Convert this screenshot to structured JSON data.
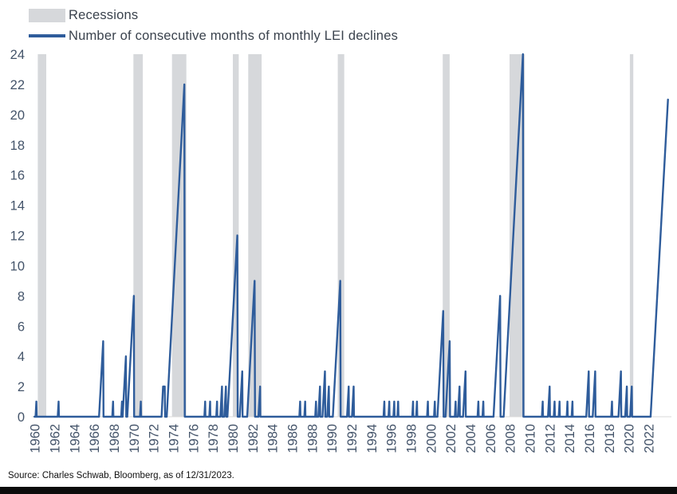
{
  "legend": [
    {
      "label": "Recessions",
      "swatch": "recession"
    },
    {
      "label": "Number of consecutive months of monthly LEI declines",
      "swatch": "line"
    }
  ],
  "source": "Source: Charles Schwab, Bloomberg, as of 12/31/2023.",
  "colors": {
    "line": "#2E5C9B",
    "recession": "#D6D8DB",
    "tick": "#44546A",
    "legend_text": "#3A424D",
    "baseline": "#D9D9D9"
  },
  "chart_data": {
    "type": "line",
    "title": "",
    "xlabel": "",
    "ylabel": "",
    "xlim": [
      1959.7,
      2024.3
    ],
    "ylim": [
      0,
      24
    ],
    "x_ticks": [
      1960,
      1962,
      1964,
      1966,
      1968,
      1970,
      1972,
      1974,
      1976,
      1978,
      1980,
      1982,
      1984,
      1986,
      1988,
      1990,
      1992,
      1994,
      1996,
      1998,
      2000,
      2002,
      2004,
      2006,
      2008,
      2010,
      2012,
      2014,
      2016,
      2018,
      2020,
      2022
    ],
    "y_ticks": [
      0,
      2,
      4,
      6,
      8,
      10,
      12,
      14,
      16,
      18,
      20,
      22,
      24
    ],
    "legend_position": "top-left",
    "grid": false,
    "recessions": [
      [
        1960.3,
        1961.15
      ],
      [
        1969.95,
        1970.9
      ],
      [
        1973.85,
        1975.3
      ],
      [
        1980.0,
        1980.6
      ],
      [
        1981.55,
        1982.9
      ],
      [
        1990.6,
        1991.25
      ],
      [
        2001.2,
        2001.9
      ],
      [
        2007.95,
        2009.5
      ],
      [
        2020.1,
        2020.45
      ]
    ],
    "series": [
      {
        "name": "Number of consecutive months of monthly LEI declines",
        "points": [
          [
            1959.96,
            0
          ],
          [
            1960.07,
            0
          ],
          [
            1960.15,
            1
          ],
          [
            1960.18,
            0
          ],
          [
            1962.31,
            0
          ],
          [
            1962.4,
            1
          ],
          [
            1962.43,
            0
          ],
          [
            1966.48,
            0
          ],
          [
            1966.9,
            5
          ],
          [
            1966.93,
            0
          ],
          [
            1967.82,
            0
          ],
          [
            1967.9,
            1
          ],
          [
            1967.93,
            0
          ],
          [
            1968.72,
            0
          ],
          [
            1968.8,
            1
          ],
          [
            1968.83,
            0
          ],
          [
            1968.87,
            0
          ],
          [
            1969.2,
            4
          ],
          [
            1969.23,
            0
          ],
          [
            1969.33,
            0
          ],
          [
            1970.0,
            8
          ],
          [
            1970.03,
            0
          ],
          [
            1970.62,
            0
          ],
          [
            1970.7,
            1
          ],
          [
            1970.73,
            0
          ],
          [
            1972.8,
            0
          ],
          [
            1972.95,
            2
          ],
          [
            1973.12,
            2
          ],
          [
            1973.15,
            0
          ],
          [
            1973.32,
            0
          ],
          [
            1975.1,
            22
          ],
          [
            1975.14,
            0
          ],
          [
            1977.12,
            0
          ],
          [
            1977.2,
            1
          ],
          [
            1977.23,
            0
          ],
          [
            1977.62,
            0
          ],
          [
            1977.7,
            1
          ],
          [
            1977.73,
            0
          ],
          [
            1978.32,
            0
          ],
          [
            1978.4,
            1
          ],
          [
            1978.43,
            0
          ],
          [
            1978.73,
            0
          ],
          [
            1978.9,
            2
          ],
          [
            1978.93,
            0
          ],
          [
            1979.13,
            0
          ],
          [
            1979.3,
            2
          ],
          [
            1979.33,
            0
          ],
          [
            1979.45,
            0
          ],
          [
            1980.45,
            12
          ],
          [
            1980.49,
            0
          ],
          [
            1980.7,
            0
          ],
          [
            1980.95,
            3
          ],
          [
            1980.98,
            0
          ],
          [
            1981.45,
            0
          ],
          [
            1982.2,
            9
          ],
          [
            1982.24,
            0
          ],
          [
            1982.58,
            0
          ],
          [
            1982.75,
            2
          ],
          [
            1982.78,
            0
          ],
          [
            1986.72,
            0
          ],
          [
            1986.8,
            1
          ],
          [
            1986.83,
            0
          ],
          [
            1987.22,
            0
          ],
          [
            1987.3,
            1
          ],
          [
            1987.33,
            0
          ],
          [
            1988.32,
            0
          ],
          [
            1988.4,
            1
          ],
          [
            1988.43,
            0
          ],
          [
            1988.63,
            0
          ],
          [
            1988.8,
            2
          ],
          [
            1988.83,
            0
          ],
          [
            1989.05,
            0
          ],
          [
            1989.3,
            3
          ],
          [
            1989.33,
            0
          ],
          [
            1989.53,
            0
          ],
          [
            1989.7,
            2
          ],
          [
            1989.73,
            0
          ],
          [
            1990.1,
            0
          ],
          [
            1990.85,
            9
          ],
          [
            1990.89,
            0
          ],
          [
            1991.53,
            0
          ],
          [
            1991.7,
            2
          ],
          [
            1991.73,
            0
          ],
          [
            1992.03,
            0
          ],
          [
            1992.2,
            2
          ],
          [
            1992.23,
            0
          ],
          [
            1995.22,
            0
          ],
          [
            1995.3,
            1
          ],
          [
            1995.33,
            0
          ],
          [
            1995.72,
            0
          ],
          [
            1995.8,
            1
          ],
          [
            1995.83,
            0
          ],
          [
            1996.22,
            0
          ],
          [
            1996.3,
            1
          ],
          [
            1996.33,
            0
          ],
          [
            1996.62,
            0
          ],
          [
            1996.7,
            1
          ],
          [
            1996.73,
            0
          ],
          [
            1998.12,
            0
          ],
          [
            1998.2,
            1
          ],
          [
            1998.23,
            0
          ],
          [
            1998.52,
            0
          ],
          [
            1998.6,
            1
          ],
          [
            1998.63,
            0
          ],
          [
            1999.62,
            0
          ],
          [
            1999.7,
            1
          ],
          [
            1999.73,
            0
          ],
          [
            2000.32,
            0
          ],
          [
            2000.4,
            1
          ],
          [
            2000.43,
            0
          ],
          [
            2000.67,
            0
          ],
          [
            2001.25,
            7
          ],
          [
            2001.29,
            0
          ],
          [
            2001.48,
            0
          ],
          [
            2001.9,
            5
          ],
          [
            2001.94,
            0
          ],
          [
            2002.42,
            0
          ],
          [
            2002.5,
            1
          ],
          [
            2002.53,
            0
          ],
          [
            2002.73,
            0
          ],
          [
            2002.9,
            2
          ],
          [
            2002.93,
            0
          ],
          [
            2003.25,
            0
          ],
          [
            2003.5,
            3
          ],
          [
            2003.53,
            0
          ],
          [
            2004.72,
            0
          ],
          [
            2004.8,
            1
          ],
          [
            2004.83,
            0
          ],
          [
            2005.22,
            0
          ],
          [
            2005.3,
            1
          ],
          [
            2005.33,
            0
          ],
          [
            2006.33,
            0
          ],
          [
            2007.0,
            8
          ],
          [
            2007.04,
            0
          ],
          [
            2007.35,
            0
          ],
          [
            2009.3,
            24
          ],
          [
            2009.35,
            0
          ],
          [
            2011.22,
            0
          ],
          [
            2011.3,
            1
          ],
          [
            2011.33,
            0
          ],
          [
            2011.83,
            0
          ],
          [
            2012.0,
            2
          ],
          [
            2012.03,
            0
          ],
          [
            2012.42,
            0
          ],
          [
            2012.5,
            1
          ],
          [
            2012.53,
            0
          ],
          [
            2012.92,
            0
          ],
          [
            2013.0,
            1
          ],
          [
            2013.03,
            0
          ],
          [
            2013.72,
            0
          ],
          [
            2013.8,
            1
          ],
          [
            2013.83,
            0
          ],
          [
            2014.22,
            0
          ],
          [
            2014.3,
            1
          ],
          [
            2014.33,
            0
          ],
          [
            2015.7,
            0
          ],
          [
            2015.95,
            3
          ],
          [
            2015.98,
            0
          ],
          [
            2016.35,
            0
          ],
          [
            2016.6,
            3
          ],
          [
            2016.63,
            0
          ],
          [
            2018.22,
            0
          ],
          [
            2018.3,
            1
          ],
          [
            2018.33,
            0
          ],
          [
            2018.95,
            0
          ],
          [
            2019.2,
            3
          ],
          [
            2019.23,
            0
          ],
          [
            2019.63,
            0
          ],
          [
            2019.8,
            2
          ],
          [
            2019.83,
            0
          ],
          [
            2020.13,
            0
          ],
          [
            2020.3,
            2
          ],
          [
            2020.33,
            0
          ],
          [
            2022.2,
            0
          ],
          [
            2023.95,
            21
          ]
        ]
      }
    ]
  }
}
